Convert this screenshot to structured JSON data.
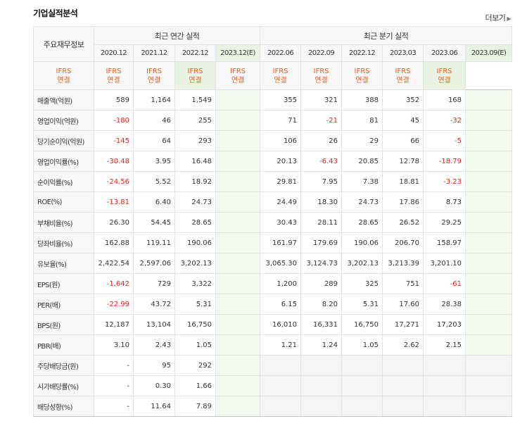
{
  "title": "기업실적분석",
  "more_label": "더보기",
  "table": {
    "row_label_header": "주요재무정보",
    "group_annual": "최근 연간 실적",
    "group_quarter": "최근 분기 실적",
    "annual_periods": [
      "2020.12",
      "2021.12",
      "2022.12",
      "2023.12(E)"
    ],
    "quarter_periods": [
      "2022.06",
      "2022.09",
      "2022.12",
      "2023.03",
      "2023.06",
      "2023.09(E)"
    ],
    "basis_line1": "IFRS",
    "basis_line2": "연결",
    "rows": [
      {
        "label": "매출액(억원)",
        "annual": [
          "589",
          "1,164",
          "1,549",
          ""
        ],
        "quarter": [
          "355",
          "321",
          "388",
          "352",
          "168",
          ""
        ]
      },
      {
        "label": "영업이익(억원)",
        "annual": [
          "-180",
          "46",
          "255",
          ""
        ],
        "quarter": [
          "71",
          "-21",
          "81",
          "45",
          "-32",
          ""
        ]
      },
      {
        "label": "당기순이익(억원)",
        "annual": [
          "-145",
          "64",
          "293",
          ""
        ],
        "quarter": [
          "106",
          "26",
          "29",
          "66",
          "-5",
          ""
        ]
      },
      {
        "label": "영업이익률(%)",
        "annual": [
          "-30.48",
          "3.95",
          "16.48",
          ""
        ],
        "quarter": [
          "20.13",
          "-6.43",
          "20.85",
          "12.78",
          "-18.79",
          ""
        ]
      },
      {
        "label": "순이익률(%)",
        "annual": [
          "-24.56",
          "5.52",
          "18.92",
          ""
        ],
        "quarter": [
          "29.81",
          "7.95",
          "7.38",
          "18.81",
          "-3.23",
          ""
        ]
      },
      {
        "label": "ROE(%)",
        "annual": [
          "-13.81",
          "6.40",
          "24.73",
          ""
        ],
        "quarter": [
          "24.49",
          "18.30",
          "24.73",
          "17.86",
          "8.73",
          ""
        ]
      },
      {
        "label": "부채비율(%)",
        "annual": [
          "26.30",
          "54.45",
          "28.65",
          ""
        ],
        "quarter": [
          "30.43",
          "28.11",
          "28.65",
          "26.52",
          "29.25",
          ""
        ]
      },
      {
        "label": "당좌비율(%)",
        "annual": [
          "162.88",
          "119.11",
          "190.06",
          ""
        ],
        "quarter": [
          "161.97",
          "179.69",
          "190.06",
          "206.70",
          "158.97",
          ""
        ]
      },
      {
        "label": "유보율(%)",
        "annual": [
          "2,422.54",
          "2,597.06",
          "3,202.13",
          ""
        ],
        "quarter": [
          "3,065.30",
          "3,124.73",
          "3,202.13",
          "3,213.39",
          "3,201.10",
          ""
        ]
      },
      {
        "label": "EPS(원)",
        "annual": [
          "-1,642",
          "729",
          "3,322",
          ""
        ],
        "quarter": [
          "1,200",
          "289",
          "325",
          "751",
          "-61",
          ""
        ]
      },
      {
        "label": "PER(배)",
        "annual": [
          "-22.99",
          "43.72",
          "5.31",
          ""
        ],
        "quarter": [
          "6.15",
          "8.20",
          "5.31",
          "17.60",
          "28.38",
          ""
        ]
      },
      {
        "label": "BPS(원)",
        "annual": [
          "12,187",
          "13,104",
          "16,750",
          ""
        ],
        "quarter": [
          "16,010",
          "16,331",
          "16,750",
          "17,271",
          "17,203",
          ""
        ]
      },
      {
        "label": "PBR(배)",
        "annual": [
          "3.10",
          "2.43",
          "1.05",
          ""
        ],
        "quarter": [
          "1.21",
          "1.24",
          "1.05",
          "2.62",
          "2.15",
          ""
        ]
      },
      {
        "label": "주당배당금(원)",
        "annual": [
          "-",
          "95",
          "292",
          ""
        ],
        "quarter": [
          "",
          "",
          "",
          "",
          "",
          ""
        ]
      },
      {
        "label": "시가배당률(%)",
        "annual": [
          "-",
          "0.30",
          "1.66",
          ""
        ],
        "quarter": [
          "",
          "",
          "",
          "",
          "",
          ""
        ]
      },
      {
        "label": "배당성향(%)",
        "annual": [
          "-",
          "11.64",
          "7.89",
          ""
        ],
        "quarter": [
          "",
          "",
          "",
          "",
          "",
          ""
        ]
      }
    ]
  },
  "colors": {
    "negative": "#e0231d",
    "basis": "#f05a1a",
    "estimate_bg": "#f3f9ee",
    "header_bg": "#f7f7f7"
  }
}
